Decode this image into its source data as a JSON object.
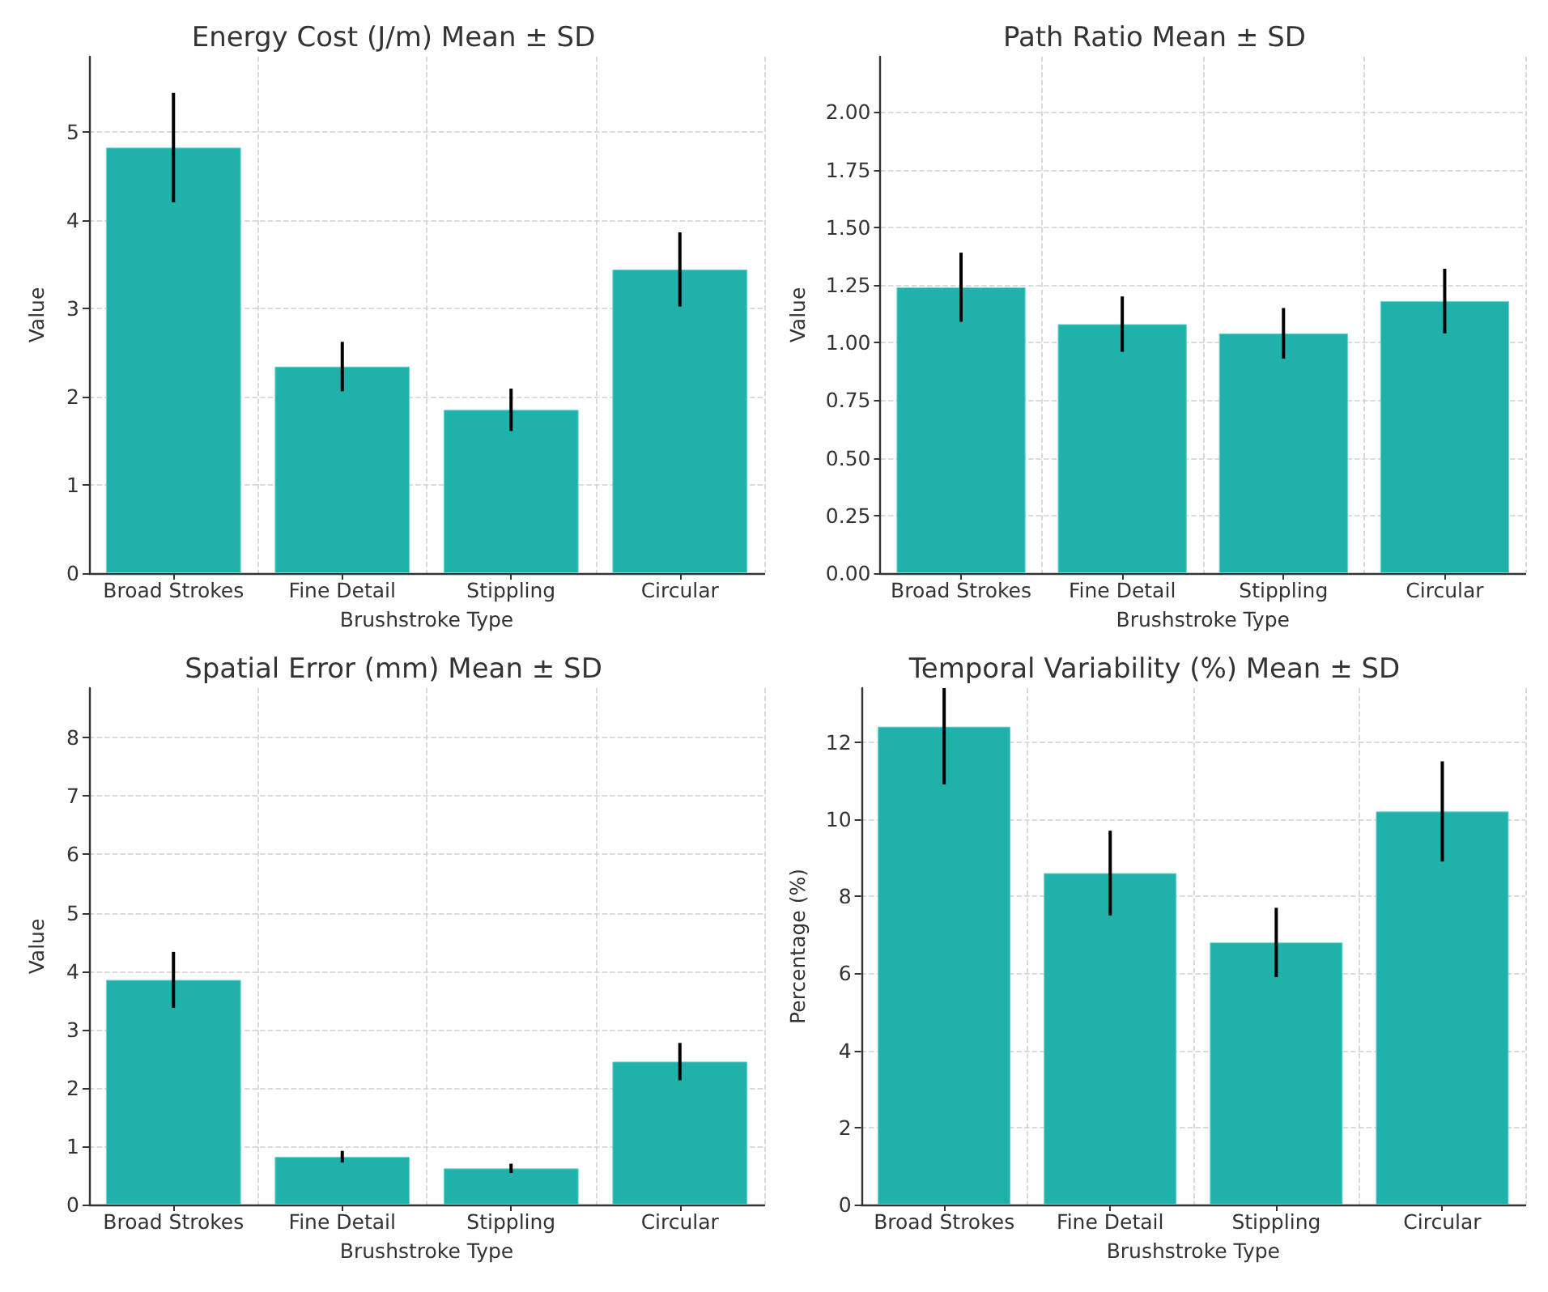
{
  "chart_data": [
    {
      "type": "bar",
      "title": "Energy Cost (J/m) Mean ± SD",
      "xlabel": "Brushstroke Type",
      "ylabel": "Value",
      "categories": [
        "Broad Strokes",
        "Fine Detail",
        "Stippling",
        "Circular"
      ],
      "values": [
        4.82,
        2.34,
        1.85,
        3.44
      ],
      "errors": [
        0.62,
        0.28,
        0.24,
        0.42
      ],
      "color": "#20b2aa",
      "ylim": [
        0,
        5.85
      ],
      "yticks": [
        0,
        1,
        2,
        3,
        4,
        5
      ],
      "grid": true
    },
    {
      "type": "bar",
      "title": "Path Ratio Mean ± SD",
      "xlabel": "Brushstroke Type",
      "ylabel": "Value",
      "categories": [
        "Broad Strokes",
        "Fine Detail",
        "Stippling",
        "Circular"
      ],
      "values": [
        1.24,
        1.08,
        1.04,
        1.18
      ],
      "errors": [
        0.15,
        0.12,
        0.11,
        0.14
      ],
      "color": "#20b2aa",
      "ylim": [
        0,
        2.24
      ],
      "yticks": [
        {
          "value": 0,
          "label": "0.00"
        },
        {
          "value": 0.25,
          "label": "0.25"
        },
        {
          "value": 0.5,
          "label": "0.50"
        },
        {
          "value": 0.75,
          "label": "0.75"
        },
        {
          "value": 1,
          "label": "1.00"
        },
        {
          "value": 1.25,
          "label": "1.25"
        },
        {
          "value": 1.5,
          "label": "1.50"
        },
        {
          "value": 1.75,
          "label": "1.75"
        },
        {
          "value": 2,
          "label": "2.00"
        }
      ],
      "grid": true
    },
    {
      "type": "bar",
      "title": "Spatial Error (mm) Mean ± SD",
      "xlabel": "Brushstroke Type",
      "ylabel": "Value",
      "categories": [
        "Broad Strokes",
        "Fine Detail",
        "Stippling",
        "Circular"
      ],
      "values": [
        3.85,
        0.82,
        0.62,
        2.45
      ],
      "errors": [
        0.48,
        0.1,
        0.08,
        0.32
      ],
      "color": "#20b2aa",
      "ylim": [
        0,
        8.85
      ],
      "yticks": [
        0,
        1,
        2,
        3,
        4,
        5,
        6,
        7,
        8
      ],
      "grid": true
    },
    {
      "type": "bar",
      "title": "Temporal Variability (%) Mean ± SD",
      "xlabel": "Brushstroke Type",
      "ylabel": "Percentage (%)",
      "categories": [
        "Broad Strokes",
        "Fine Detail",
        "Stippling",
        "Circular"
      ],
      "values": [
        12.4,
        8.6,
        6.8,
        10.2
      ],
      "errors": [
        [
          10.9,
          13.4
        ],
        1.1,
        0.9,
        1.3
      ],
      "color": "#20b2aa",
      "ylim": [
        0,
        13.4
      ],
      "yticks": [
        0,
        2,
        4,
        6,
        8,
        10,
        12
      ],
      "grid": true
    }
  ]
}
